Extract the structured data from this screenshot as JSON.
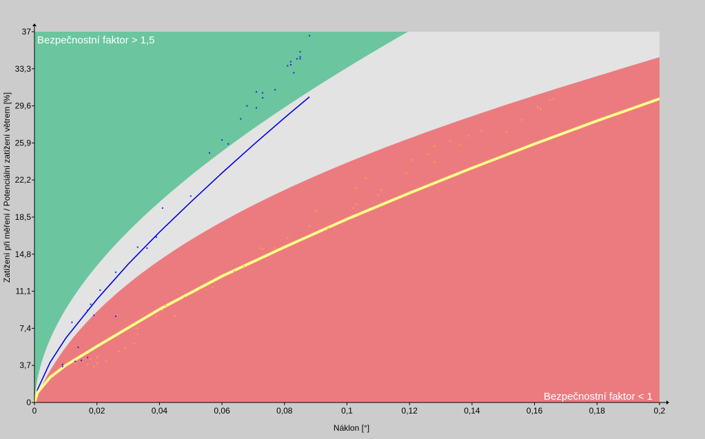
{
  "chart_data": {
    "type": "scatter",
    "xlabel": "Náklon [°]",
    "ylabel": "Zatížení při měření / Potenciální zatížení větrem [%]",
    "xlim": [
      0,
      0.2
    ],
    "ylim": [
      0,
      37
    ],
    "x_ticks": [
      "0",
      "0,02",
      "0,04",
      "0,06",
      "0,08",
      "0,1",
      "0,12",
      "0,14",
      "0,16",
      "0,18",
      "0,2"
    ],
    "y_ticks": [
      "0",
      "3,7",
      "7,4",
      "11,1",
      "14,8",
      "18,5",
      "22,2",
      "25,9",
      "29,6",
      "33,3",
      "37"
    ],
    "grid": false,
    "zones": {
      "safe_label": "Bezpečnostní faktor > 1,5",
      "unsafe_label": "Bezpečnostní faktor < 1",
      "safe_color": "#6bc59f",
      "middle_color": "#e3e3e3",
      "unsafe_color": "#ec7b80"
    },
    "curves": [
      {
        "color": "#0000dd",
        "x": [
          0,
          0.001,
          0.005,
          0.01,
          0.02,
          0.03,
          0.04,
          0.05,
          0.06,
          0.07,
          0.08,
          0.088
        ],
        "y": [
          0,
          1.3,
          4.0,
          6.4,
          10.3,
          13.8,
          17.0,
          20.0,
          22.9,
          25.7,
          28.4,
          30.5
        ]
      },
      {
        "color": "#ffff66",
        "x": [
          0,
          0.001,
          0.005,
          0.01,
          0.02,
          0.04,
          0.06,
          0.08,
          0.1,
          0.12,
          0.14,
          0.16,
          0.18,
          0.2
        ],
        "y": [
          0,
          1.0,
          2.5,
          3.7,
          5.6,
          9.3,
          12.6,
          15.5,
          18.3,
          20.9,
          23.4,
          25.8,
          28.1,
          30.3
        ]
      }
    ],
    "series": [
      {
        "color": "#2222dd",
        "points": [
          [
            0.009,
            3.6
          ],
          [
            0.009,
            3.8
          ],
          [
            0.012,
            8.0
          ],
          [
            0.013,
            4.1
          ],
          [
            0.014,
            5.5
          ],
          [
            0.015,
            4.2
          ],
          [
            0.017,
            4.5
          ],
          [
            0.017,
            9.2
          ],
          [
            0.018,
            9.8
          ],
          [
            0.019,
            8.7
          ],
          [
            0.021,
            11.2
          ],
          [
            0.026,
            8.6
          ],
          [
            0.026,
            13.0
          ],
          [
            0.033,
            15.5
          ],
          [
            0.036,
            15.4
          ],
          [
            0.039,
            16.5
          ],
          [
            0.041,
            19.4
          ],
          [
            0.05,
            20.6
          ],
          [
            0.056,
            24.9
          ],
          [
            0.06,
            26.2
          ],
          [
            0.062,
            25.8
          ],
          [
            0.066,
            28.3
          ],
          [
            0.068,
            29.6
          ],
          [
            0.071,
            29.4
          ],
          [
            0.071,
            31.0
          ],
          [
            0.073,
            30.4
          ],
          [
            0.073,
            30.9
          ],
          [
            0.077,
            31.2
          ],
          [
            0.081,
            33.6
          ],
          [
            0.082,
            34.0
          ],
          [
            0.082,
            33.7
          ],
          [
            0.083,
            32.9
          ],
          [
            0.084,
            34.3
          ],
          [
            0.085,
            34.5
          ],
          [
            0.085,
            34.3
          ],
          [
            0.085,
            35.0
          ],
          [
            0.088,
            36.6
          ]
        ]
      },
      {
        "color": "#ffa640",
        "points": [
          [
            0.013,
            3.9
          ],
          [
            0.017,
            3.8
          ],
          [
            0.018,
            4.3
          ],
          [
            0.019,
            3.6
          ],
          [
            0.02,
            4.5
          ],
          [
            0.02,
            3.9
          ],
          [
            0.023,
            4.1
          ],
          [
            0.027,
            5.1
          ],
          [
            0.029,
            5.4
          ],
          [
            0.032,
            5.9
          ],
          [
            0.032,
            8.0
          ],
          [
            0.033,
            7.4
          ],
          [
            0.033,
            6.8
          ],
          [
            0.039,
            8.6
          ],
          [
            0.041,
            9.2
          ],
          [
            0.042,
            9.7
          ],
          [
            0.045,
            8.6
          ],
          [
            0.048,
            10.5
          ],
          [
            0.053,
            11.3
          ],
          [
            0.057,
            11.5
          ],
          [
            0.064,
            13.1
          ],
          [
            0.067,
            13.6
          ],
          [
            0.072,
            15.4
          ],
          [
            0.073,
            15.3
          ],
          [
            0.077,
            15.4
          ],
          [
            0.081,
            16.4
          ],
          [
            0.088,
            17.6
          ],
          [
            0.09,
            19.1
          ],
          [
            0.094,
            17.4
          ],
          [
            0.102,
            19.4
          ],
          [
            0.103,
            19.8
          ],
          [
            0.103,
            21.4
          ],
          [
            0.106,
            22.4
          ],
          [
            0.11,
            20.7
          ],
          [
            0.111,
            21.2
          ],
          [
            0.119,
            22.9
          ],
          [
            0.121,
            24.2
          ],
          [
            0.126,
            24.8
          ],
          [
            0.128,
            24.0
          ],
          [
            0.128,
            25.6
          ],
          [
            0.133,
            26.1
          ],
          [
            0.136,
            25.7
          ],
          [
            0.139,
            26.6
          ],
          [
            0.143,
            27.1
          ],
          [
            0.151,
            27.0
          ],
          [
            0.156,
            28.2
          ],
          [
            0.161,
            29.5
          ],
          [
            0.162,
            29.3
          ],
          [
            0.165,
            30.2
          ],
          [
            0.166,
            30.3
          ]
        ]
      }
    ]
  }
}
